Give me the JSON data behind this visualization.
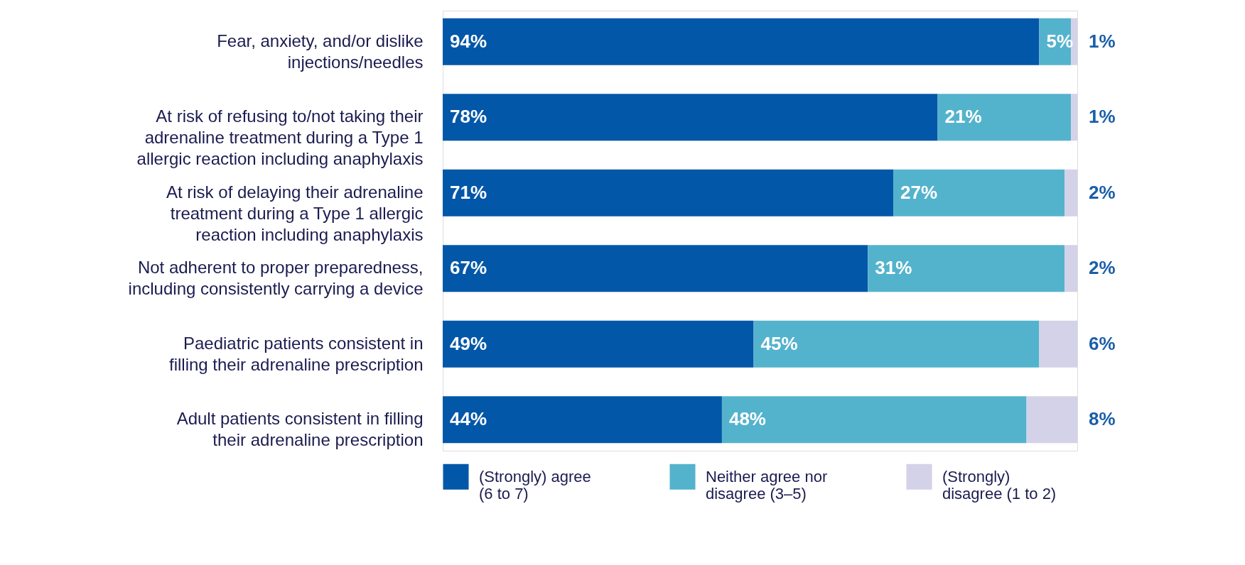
{
  "chart_data": {
    "type": "bar",
    "orientation": "horizontal",
    "stacked": true,
    "legend": "bottom",
    "grid": false,
    "tick_labels": "y",
    "categories": [
      "Fear, anxiety, and/or dislike injections/needles",
      "At risk of refusing to/not taking their adrenaline treatment during a Type 1 allergic reaction including anaphylaxis",
      "At risk of delaying their adrenaline treatment during a Type 1 allergic reaction including anaphylaxis",
      "Not adherent to proper preparedness, including consistently carrying a device",
      "Paediatric patients consistent in filling their adrenaline prescription",
      "Adult patients consistent in filling their adrenaline prescription"
    ],
    "series": [
      {
        "name": "(Strongly) agree (6 to 7)",
        "color": "#0357a8",
        "values": [
          94,
          78,
          71,
          67,
          49,
          44
        ],
        "value_labels": [
          "94%",
          "78%",
          "71%",
          "67%",
          "49%",
          "44%"
        ]
      },
      {
        "name": "Neither agree nor disagree (3–5)",
        "color": "#54b3cc",
        "values": [
          5,
          21,
          27,
          31,
          45,
          48
        ],
        "value_labels": [
          "5%",
          "21%",
          "27%",
          "31%",
          "45%",
          "48%"
        ]
      },
      {
        "name": "(Strongly) disagree (1 to 2)",
        "color": "#d4d2e8",
        "values": [
          1,
          1,
          2,
          2,
          6,
          8
        ],
        "value_labels": [
          "1%",
          "1%",
          "2%",
          "2%",
          "6%",
          "8%"
        ]
      }
    ]
  }
}
